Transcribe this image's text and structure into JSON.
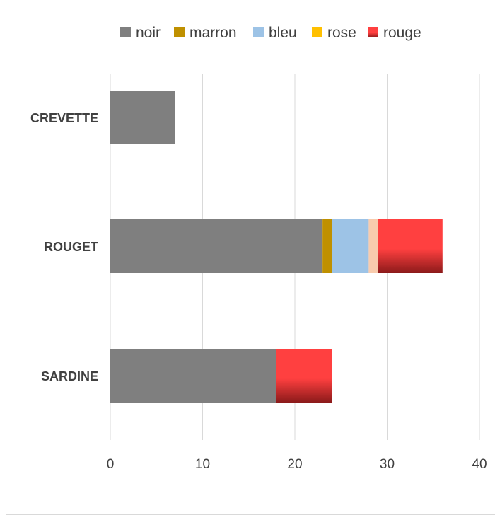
{
  "chart_data": {
    "type": "bar",
    "orientation": "horizontal",
    "stacked": true,
    "categories": [
      "CREVETTE",
      "ROUGET",
      "SARDINE"
    ],
    "series": [
      {
        "name": "noir",
        "color": "#7f7f7f",
        "values": [
          7,
          23,
          18
        ]
      },
      {
        "name": "marron",
        "color": "#bf9000",
        "values": [
          0,
          1,
          0
        ]
      },
      {
        "name": "bleu",
        "color": "#9dc3e6",
        "values": [
          0,
          4,
          0
        ]
      },
      {
        "name": "rose",
        "color": "#f8cbad",
        "legend_color": "#ffc000",
        "values": [
          0,
          1,
          0
        ]
      },
      {
        "name": "rouge",
        "color": "#ff4040",
        "color_dark": "#8b1a1a",
        "values": [
          0,
          7,
          6
        ]
      }
    ],
    "xlim": [
      0,
      40
    ],
    "x_ticks": [
      "0",
      "10",
      "20",
      "30",
      "40"
    ],
    "grid": "vertical",
    "legend_position": "top"
  }
}
